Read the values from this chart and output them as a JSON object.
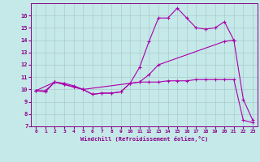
{
  "xlabel": "Windchill (Refroidissement éolien,°C)",
  "bg_color": "#c5e8e8",
  "grid_color": "#aacccc",
  "line_color": "#aa00aa",
  "xlim": [
    -0.5,
    23.5
  ],
  "ylim": [
    7,
    17
  ],
  "yticks": [
    7,
    8,
    9,
    10,
    11,
    12,
    13,
    14,
    15,
    16
  ],
  "xticks": [
    0,
    1,
    2,
    3,
    4,
    5,
    6,
    7,
    8,
    9,
    10,
    11,
    12,
    13,
    14,
    15,
    16,
    17,
    18,
    19,
    20,
    21,
    22,
    23
  ],
  "line1_x": [
    0,
    1,
    2,
    3,
    4,
    5,
    6,
    7,
    8,
    9,
    10,
    11,
    12,
    13,
    14,
    15,
    16,
    17,
    18,
    19,
    20,
    21,
    22,
    23
  ],
  "line1_y": [
    9.9,
    9.8,
    10.6,
    10.5,
    10.3,
    10.0,
    9.6,
    9.7,
    9.7,
    9.8,
    10.5,
    11.8,
    13.9,
    15.8,
    15.8,
    16.6,
    15.8,
    15.0,
    14.9,
    15.0,
    15.5,
    14.0,
    9.2,
    7.5
  ],
  "line2_x": [
    0,
    2,
    3,
    4,
    5,
    11,
    12,
    13,
    20,
    21
  ],
  "line2_y": [
    9.9,
    10.6,
    10.4,
    10.2,
    10.0,
    10.6,
    11.2,
    12.0,
    13.9,
    14.0
  ],
  "line3_x": [
    0,
    1,
    2,
    3,
    4,
    5,
    6,
    7,
    8,
    9,
    10,
    11,
    12,
    13,
    14,
    15,
    16,
    17,
    18,
    19,
    20,
    21,
    22,
    23
  ],
  "line3_y": [
    9.9,
    9.9,
    10.6,
    10.4,
    10.2,
    10.0,
    9.6,
    9.7,
    9.7,
    9.8,
    10.5,
    10.6,
    10.6,
    10.6,
    10.7,
    10.7,
    10.7,
    10.8,
    10.8,
    10.8,
    10.8,
    10.8,
    7.5,
    7.3
  ]
}
